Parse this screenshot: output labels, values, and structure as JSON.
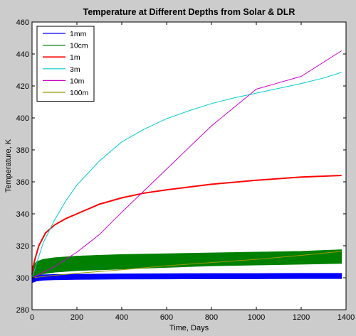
{
  "chart_data": {
    "type": "line",
    "title": "Temperature at Different Depths from Solar & DLR",
    "xlabel": "Time, Days",
    "ylabel": "Temperature, K",
    "xlim": [
      0,
      1400
    ],
    "ylim": [
      280,
      460
    ],
    "xticks": [
      0,
      200,
      400,
      600,
      800,
      1000,
      1200,
      1400
    ],
    "yticks": [
      280,
      300,
      320,
      340,
      360,
      380,
      400,
      420,
      440,
      460
    ],
    "grid": false,
    "legend_position": "top-left",
    "background": "#cccccc",
    "plot_background": "#ffffff",
    "series": [
      {
        "name": "1mm",
        "color": "#0000ff",
        "band": true,
        "x": [
          0,
          20,
          50,
          100,
          200,
          400,
          600,
          800,
          1000,
          1200,
          1380
        ],
        "y_low": [
          297,
          298,
          298.5,
          298.8,
          299,
          299.2,
          299.3,
          299.4,
          299.4,
          299.5,
          299.5
        ],
        "y_high": [
          301,
          301.5,
          301.8,
          302,
          302.2,
          302.4,
          302.5,
          302.6,
          302.6,
          302.7,
          302.7
        ]
      },
      {
        "name": "10cm",
        "color": "#008000",
        "band": true,
        "x": [
          0,
          20,
          50,
          100,
          200,
          400,
          600,
          800,
          1000,
          1200,
          1380
        ],
        "y_low": [
          300,
          301.5,
          302.5,
          303.5,
          304.5,
          305.5,
          306.5,
          307.5,
          308,
          308.5,
          309
        ],
        "y_high": [
          307,
          310,
          311.5,
          312.5,
          313.5,
          314.5,
          315,
          315.5,
          316,
          316.5,
          317.5
        ]
      },
      {
        "name": "1m",
        "color": "#ff0000",
        "band": false,
        "x": [
          0,
          10,
          30,
          60,
          100,
          150,
          200,
          300,
          400,
          500,
          600,
          800,
          1000,
          1200,
          1380
        ],
        "y": [
          302,
          310,
          320,
          328,
          333,
          337,
          340,
          346,
          350,
          353,
          355,
          358.5,
          361,
          363,
          364
        ]
      },
      {
        "name": "3m",
        "color": "#00cccc",
        "band": false,
        "x": [
          0,
          25,
          50,
          100,
          150,
          200,
          300,
          400,
          500,
          600,
          700,
          800,
          900,
          1000,
          1100,
          1200,
          1300,
          1380
        ],
        "y": [
          300,
          311,
          322,
          336,
          348,
          358,
          373,
          385,
          393,
          399.5,
          404.5,
          409,
          412.5,
          415.5,
          418.5,
          421.5,
          425,
          428.5
        ]
      },
      {
        "name": "10m",
        "color": "#cc00cc",
        "band": false,
        "x": [
          0,
          30,
          100,
          200,
          300,
          400,
          600,
          800,
          1000,
          1200,
          1380
        ],
        "y": [
          300,
          302,
          307,
          316,
          327,
          341,
          368,
          395,
          418,
          426,
          442
        ]
      },
      {
        "name": "100m",
        "color": "#999900",
        "band": false,
        "x": [
          0,
          100,
          200,
          400,
          600,
          800,
          1000,
          1200,
          1380
        ],
        "y": [
          300,
          301.5,
          302.8,
          305,
          307.5,
          309.5,
          311.5,
          314,
          316.5
        ]
      }
    ]
  }
}
